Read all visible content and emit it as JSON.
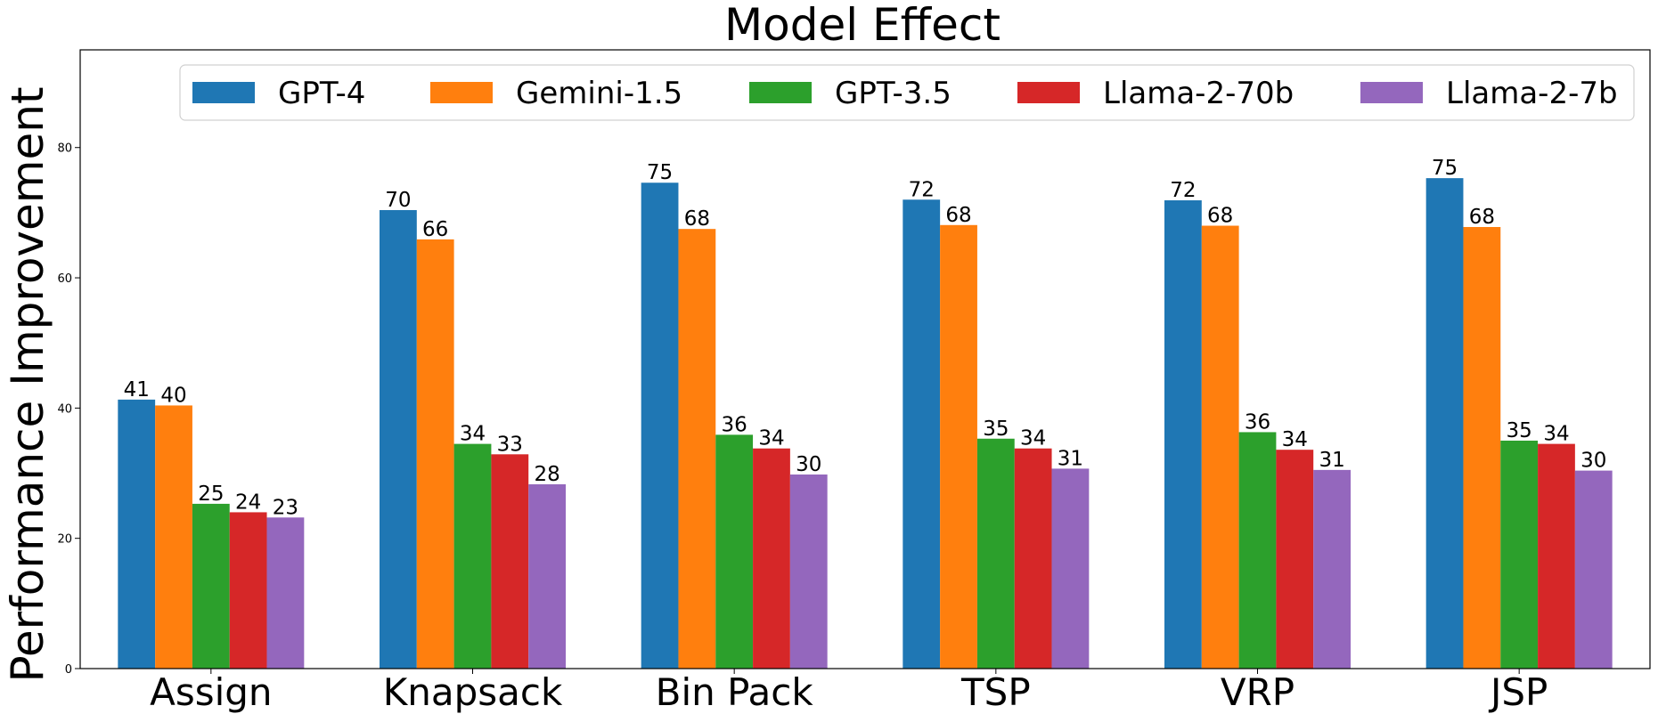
{
  "chart_data": {
    "type": "bar",
    "title": "Model Effect",
    "xlabel": "",
    "ylabel": "Performance Improvement",
    "ylim": [
      0,
      95
    ],
    "yticks": [
      0,
      20,
      40,
      60,
      80
    ],
    "grid": false,
    "legend_position": "top",
    "categories": [
      "Assign",
      "Knapsack",
      "Bin Pack",
      "TSP",
      "VRP",
      "JSP"
    ],
    "series": [
      {
        "name": "GPT-4",
        "color": "#1f77b4",
        "values": [
          41.3,
          70.4,
          74.6,
          72.0,
          71.9,
          75.3
        ],
        "labels": [
          "41",
          "70",
          "75",
          "72",
          "72",
          "75"
        ]
      },
      {
        "name": "Gemini-1.5",
        "color": "#ff7f0e",
        "values": [
          40.4,
          65.9,
          67.5,
          68.1,
          68.0,
          67.8
        ],
        "labels": [
          "40",
          "66",
          "68",
          "68",
          "68",
          "68"
        ]
      },
      {
        "name": "GPT-3.5",
        "color": "#2ca02c",
        "values": [
          25.3,
          34.5,
          35.9,
          35.3,
          36.3,
          35.0
        ],
        "labels": [
          "25",
          "34",
          "36",
          "35",
          "36",
          "35"
        ]
      },
      {
        "name": "Llama-2-70b",
        "color": "#d62728",
        "values": [
          24.0,
          32.9,
          33.8,
          33.8,
          33.6,
          34.5
        ],
        "labels": [
          "24",
          "33",
          "34",
          "34",
          "34",
          "34"
        ]
      },
      {
        "name": "Llama-2-7b",
        "color": "#9467bd",
        "values": [
          23.2,
          28.3,
          29.8,
          30.7,
          30.5,
          30.4
        ],
        "labels": [
          "23",
          "28",
          "30",
          "31",
          "31",
          "30"
        ]
      }
    ]
  }
}
